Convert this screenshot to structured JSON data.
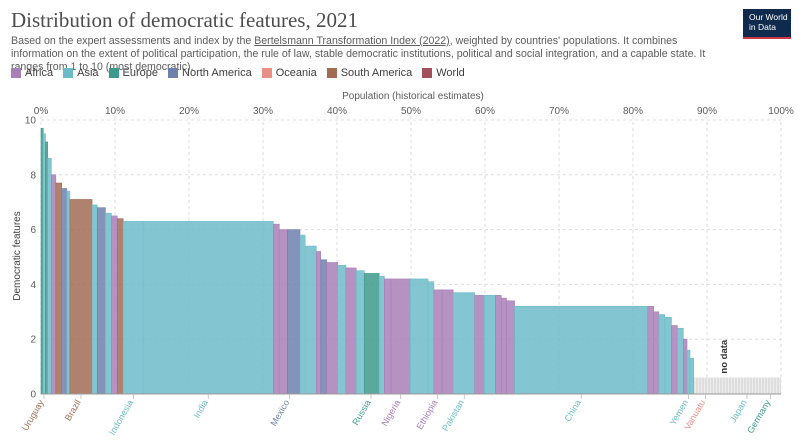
{
  "header": {
    "title": "Distribution of democratic features, 2021",
    "subtitle_pre": "Based on the expert assessments and index by the ",
    "subtitle_link": "Bertelsmann Transformation Index (2022)",
    "subtitle_post": ", weighted by countries' populations. It combines information on the extent of political participation, the rule of law, stable democratic institutions, political and social integration, and a capable state. It ranges from 1 to 10 (most democratic).",
    "logo_line1": "Our World",
    "logo_line2": "in Data"
  },
  "legend": [
    {
      "name": "Africa",
      "color": "#a97fb8"
    },
    {
      "name": "Asia",
      "color": "#6dbcc9"
    },
    {
      "name": "Europe",
      "color": "#3d9a8b"
    },
    {
      "name": "North America",
      "color": "#6f80ad"
    },
    {
      "name": "Oceania",
      "color": "#e88f86"
    },
    {
      "name": "South America",
      "color": "#a26b52"
    },
    {
      "name": "World",
      "color": "#a2515c"
    }
  ],
  "chart_data": {
    "type": "area",
    "title": "Distribution of democratic features, 2021",
    "xlabel": "Population (historical estimates)",
    "ylabel": "Democratic features",
    "xlim": [
      0,
      100
    ],
    "ylim": [
      0,
      10
    ],
    "x_ticks": [
      "0%",
      "10%",
      "20%",
      "30%",
      "40%",
      "50%",
      "60%",
      "70%",
      "80%",
      "90%",
      "100%"
    ],
    "y_ticks": [
      "0",
      "2",
      "4",
      "6",
      "8",
      "10"
    ],
    "no_data_label": "no data",
    "no_data_range": [
      88.2,
      100
    ],
    "no_data_value": 0.6,
    "regions": [
      {
        "name": "Africa",
        "color": "#a97fb8"
      },
      {
        "name": "Asia",
        "color": "#6dbcc9"
      },
      {
        "name": "Europe",
        "color": "#3d9a8b"
      },
      {
        "name": "North America",
        "color": "#6f80ad"
      },
      {
        "name": "Oceania",
        "color": "#e88f86"
      },
      {
        "name": "South America",
        "color": "#a26b52"
      }
    ],
    "segments": [
      [
        0.0,
        0.3,
        9.7,
        "Europe"
      ],
      [
        0.3,
        0.6,
        9.5,
        "Asia"
      ],
      [
        0.6,
        0.9,
        9.2,
        "Europe"
      ],
      [
        0.9,
        1.4,
        8.6,
        "Asia"
      ],
      [
        1.4,
        2.0,
        8.0,
        "Africa"
      ],
      [
        2.0,
        2.8,
        7.7,
        "South America"
      ],
      [
        2.8,
        3.5,
        7.5,
        "North America"
      ],
      [
        3.5,
        3.9,
        7.4,
        "Asia"
      ],
      [
        3.9,
        6.9,
        7.1,
        "South America"
      ],
      [
        6.9,
        7.6,
        6.9,
        "Asia"
      ],
      [
        7.6,
        8.7,
        6.8,
        "North America"
      ],
      [
        8.7,
        9.5,
        6.6,
        "Asia"
      ],
      [
        9.5,
        10.3,
        6.5,
        "Africa"
      ],
      [
        10.3,
        11.1,
        6.4,
        "South America"
      ],
      [
        11.1,
        13.8,
        6.3,
        "Asia"
      ],
      [
        13.8,
        31.4,
        6.3,
        "Asia"
      ],
      [
        31.4,
        32.2,
        6.2,
        "Africa"
      ],
      [
        32.2,
        33.3,
        6.0,
        "Africa"
      ],
      [
        33.3,
        35.0,
        6.0,
        "North America"
      ],
      [
        35.0,
        35.7,
        5.8,
        "Asia"
      ],
      [
        35.7,
        37.2,
        5.4,
        "Asia"
      ],
      [
        37.2,
        37.8,
        5.2,
        "Africa"
      ],
      [
        37.8,
        38.6,
        4.9,
        "North America"
      ],
      [
        38.6,
        40.1,
        4.8,
        "Africa"
      ],
      [
        40.1,
        41.2,
        4.7,
        "Asia"
      ],
      [
        41.2,
        42.6,
        4.6,
        "Africa"
      ],
      [
        42.6,
        43.7,
        4.5,
        "Asia"
      ],
      [
        43.7,
        45.7,
        4.4,
        "Europe"
      ],
      [
        45.7,
        46.4,
        4.3,
        "Asia"
      ],
      [
        46.4,
        47.3,
        4.2,
        "Africa"
      ],
      [
        47.3,
        49.9,
        4.2,
        "Africa"
      ],
      [
        49.9,
        52.3,
        4.2,
        "Asia"
      ],
      [
        52.3,
        53.1,
        4.1,
        "Asia"
      ],
      [
        53.1,
        54.2,
        3.8,
        "Africa"
      ],
      [
        54.2,
        55.7,
        3.8,
        "Africa"
      ],
      [
        55.7,
        58.6,
        3.7,
        "Asia"
      ],
      [
        58.6,
        59.9,
        3.6,
        "Africa"
      ],
      [
        59.9,
        61.4,
        3.6,
        "Asia"
      ],
      [
        61.4,
        62.2,
        3.6,
        "Africa"
      ],
      [
        62.2,
        62.9,
        3.5,
        "Africa"
      ],
      [
        62.9,
        64.0,
        3.4,
        "Africa"
      ],
      [
        64.0,
        82.0,
        3.2,
        "Asia"
      ],
      [
        82.0,
        82.8,
        3.2,
        "Africa"
      ],
      [
        82.8,
        83.5,
        3.0,
        "Africa"
      ],
      [
        83.5,
        84.3,
        2.9,
        "Asia"
      ],
      [
        84.3,
        85.2,
        2.8,
        "Asia"
      ],
      [
        85.2,
        86.0,
        2.5,
        "Africa"
      ],
      [
        86.0,
        86.8,
        2.4,
        "Asia"
      ],
      [
        86.8,
        87.3,
        2.0,
        "Africa"
      ],
      [
        87.3,
        87.7,
        1.6,
        "Asia"
      ],
      [
        87.7,
        88.2,
        1.3,
        "Asia"
      ]
    ],
    "country_labels": [
      {
        "name": "Uruguay",
        "x": 0.4,
        "region": "South America"
      },
      {
        "name": "Brazil",
        "x": 5.4,
        "region": "South America"
      },
      {
        "name": "Indonesia",
        "x": 12.5,
        "region": "Asia"
      },
      {
        "name": "India",
        "x": 22.6,
        "region": "Asia"
      },
      {
        "name": "Mexico",
        "x": 33.6,
        "region": "North America"
      },
      {
        "name": "Russia",
        "x": 44.6,
        "region": "Europe"
      },
      {
        "name": "Nigeria",
        "x": 48.6,
        "region": "Africa"
      },
      {
        "name": "Ethiopia",
        "x": 53.6,
        "region": "Africa"
      },
      {
        "name": "Pakistan",
        "x": 57.2,
        "region": "Asia"
      },
      {
        "name": "China",
        "x": 73.0,
        "region": "Asia"
      },
      {
        "name": "Yemen",
        "x": 87.5,
        "region": "Asia"
      },
      {
        "name": "Vanuatu",
        "x": 89.8,
        "region": "Oceania"
      },
      {
        "name": "Japan",
        "x": 95.4,
        "region": "Asia"
      },
      {
        "name": "Germany",
        "x": 98.6,
        "region": "Europe"
      }
    ]
  }
}
